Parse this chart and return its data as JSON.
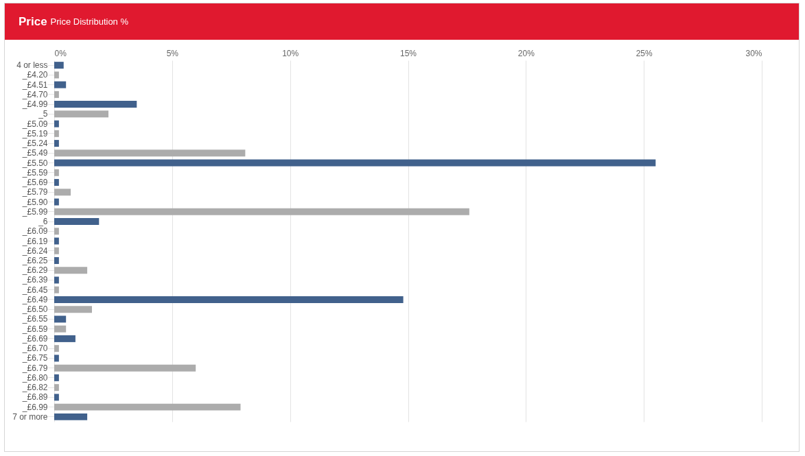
{
  "chart_data": {
    "type": "bar",
    "orientation": "horizontal",
    "title": "Price",
    "subtitle": "Price Distribution %",
    "categories": [
      "4 or less",
      "_£4.20",
      "_£4.51",
      "_£4.70",
      "_£4.99",
      "_5",
      "_£5.09",
      "_£5.19",
      "_£5.24",
      "_£5.49",
      "_£5.50",
      "_£5.59",
      "_£5.69",
      "_£5.79",
      "_£5.90",
      "_£5.99",
      "_6",
      "_£6.09",
      "_£6.19",
      "_£6.24",
      "_£6.25",
      "_£6.29",
      "_£6.39",
      "_£6.45",
      "_£6.49",
      "_£6.50",
      "_£6.55",
      "_£6.59",
      "_£6.69",
      "_£6.70",
      "_£6.75",
      "_£6.79",
      "_£6.80",
      "_£6.82",
      "_£6.89",
      "_£6.99",
      "7 or more"
    ],
    "values": [
      0.4,
      0.2,
      0.5,
      0.2,
      3.5,
      2.3,
      0.2,
      0.2,
      0.2,
      8.1,
      25.5,
      0.2,
      0.2,
      0.7,
      0.2,
      17.6,
      1.9,
      0.2,
      0.2,
      0.2,
      0.2,
      1.4,
      0.2,
      0.2,
      14.8,
      1.6,
      0.5,
      0.5,
      0.9,
      0.2,
      0.2,
      6.0,
      0.2,
      0.2,
      0.2,
      7.9,
      1.4
    ],
    "colors": [
      "#41618c",
      "#acacac",
      "#41618c",
      "#acacac",
      "#41618c",
      "#acacac",
      "#41618c",
      "#acacac",
      "#41618c",
      "#acacac",
      "#41618c",
      "#acacac",
      "#41618c",
      "#acacac",
      "#41618c",
      "#acacac",
      "#41618c",
      "#acacac",
      "#41618c",
      "#acacac",
      "#41618c",
      "#acacac",
      "#41618c",
      "#acacac",
      "#41618c",
      "#acacac",
      "#41618c",
      "#acacac",
      "#41618c",
      "#acacac",
      "#41618c",
      "#acacac",
      "#41618c",
      "#acacac",
      "#41618c",
      "#acacac",
      "#41618c"
    ],
    "xlim": [
      0,
      30
    ],
    "xticks": [
      {
        "value": 0,
        "label": "0%"
      },
      {
        "value": 5,
        "label": "5%"
      },
      {
        "value": 10,
        "label": "10%"
      },
      {
        "value": 15,
        "label": "15%"
      },
      {
        "value": 20,
        "label": "20%"
      },
      {
        "value": 25,
        "label": "25%"
      },
      {
        "value": 30,
        "label": "30%"
      }
    ],
    "grid": "x"
  }
}
